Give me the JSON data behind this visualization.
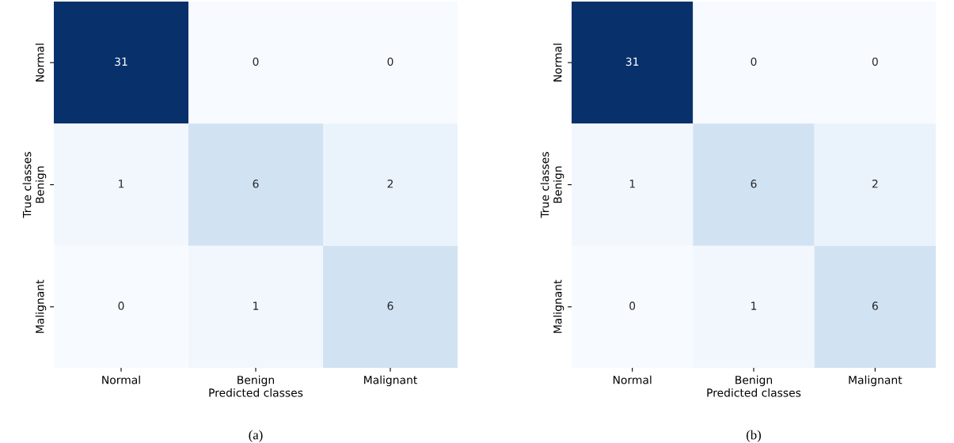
{
  "chart_data": [
    {
      "type": "heatmap",
      "xlabel": "Predicted classes",
      "ylabel": "True classes",
      "categories": [
        "Normal",
        "Benign",
        "Malignant"
      ],
      "y_categories": [
        "Normal",
        "Benign",
        "Malignant"
      ],
      "cells": [
        [
          31,
          0,
          0
        ],
        [
          1,
          6,
          2
        ],
        [
          0,
          1,
          6
        ]
      ],
      "data_labels": true,
      "annotations": [
        "(a)"
      ]
    },
    {
      "type": "heatmap",
      "xlabel": "Predicted classes",
      "ylabel": "True classes",
      "categories": [
        "Normal",
        "Benign",
        "Malignant"
      ],
      "y_categories": [
        "Normal",
        "Benign",
        "Malignant"
      ],
      "cells": [
        [
          31,
          0,
          0
        ],
        [
          1,
          6,
          2
        ],
        [
          0,
          1,
          6
        ]
      ],
      "data_labels": true,
      "annotations": [
        "(b)"
      ]
    }
  ]
}
